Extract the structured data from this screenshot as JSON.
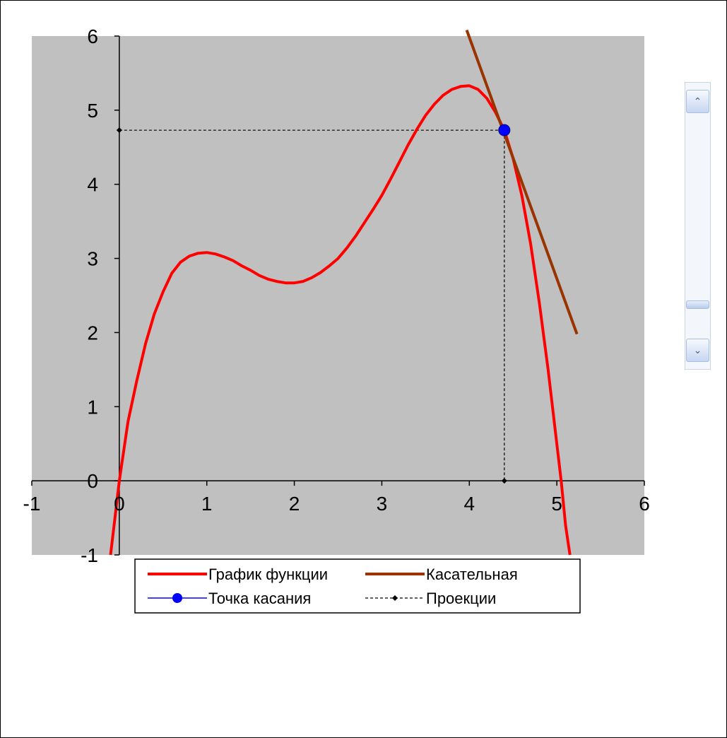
{
  "chart_data": {
    "type": "line",
    "title": "",
    "xlabel": "",
    "ylabel": "",
    "xlim": [
      -1,
      6
    ],
    "ylim": [
      -1,
      6
    ],
    "x_ticks": [
      "-1",
      "0",
      "1",
      "2",
      "3",
      "4",
      "5",
      "6"
    ],
    "y_ticks": [
      "6",
      "5",
      "4",
      "3",
      "2",
      "1",
      "0",
      "-1"
    ],
    "grid": false,
    "plot_background": "#c0c0c0",
    "legend_position": "bottom",
    "series": [
      {
        "name": "График функции",
        "style": "line",
        "color": "#ff0000",
        "points": [
          [
            -0.1,
            -1.0
          ],
          [
            0.0,
            0.0
          ],
          [
            0.1,
            0.8
          ],
          [
            0.2,
            1.35
          ],
          [
            0.3,
            1.85
          ],
          [
            0.4,
            2.25
          ],
          [
            0.5,
            2.55
          ],
          [
            0.6,
            2.8
          ],
          [
            0.7,
            2.95
          ],
          [
            0.8,
            3.03
          ],
          [
            0.9,
            3.07
          ],
          [
            1.0,
            3.08
          ],
          [
            1.1,
            3.06
          ],
          [
            1.2,
            3.02
          ],
          [
            1.3,
            2.97
          ],
          [
            1.4,
            2.9
          ],
          [
            1.5,
            2.84
          ],
          [
            1.6,
            2.77
          ],
          [
            1.7,
            2.72
          ],
          [
            1.8,
            2.69
          ],
          [
            1.9,
            2.67
          ],
          [
            2.0,
            2.67
          ],
          [
            2.1,
            2.69
          ],
          [
            2.2,
            2.74
          ],
          [
            2.3,
            2.81
          ],
          [
            2.4,
            2.9
          ],
          [
            2.5,
            3.0
          ],
          [
            2.6,
            3.14
          ],
          [
            2.7,
            3.3
          ],
          [
            2.8,
            3.48
          ],
          [
            2.9,
            3.66
          ],
          [
            3.0,
            3.85
          ],
          [
            3.1,
            4.07
          ],
          [
            3.2,
            4.3
          ],
          [
            3.3,
            4.53
          ],
          [
            3.4,
            4.74
          ],
          [
            3.5,
            4.93
          ],
          [
            3.6,
            5.08
          ],
          [
            3.7,
            5.2
          ],
          [
            3.8,
            5.28
          ],
          [
            3.9,
            5.32
          ],
          [
            4.0,
            5.33
          ],
          [
            4.1,
            5.28
          ],
          [
            4.2,
            5.16
          ],
          [
            4.3,
            4.97
          ],
          [
            4.4,
            4.73
          ],
          [
            4.5,
            4.35
          ],
          [
            4.6,
            3.85
          ],
          [
            4.7,
            3.2
          ],
          [
            4.8,
            2.4
          ],
          [
            4.9,
            1.5
          ],
          [
            5.0,
            0.5
          ],
          [
            5.05,
            0.0
          ],
          [
            5.1,
            -0.6
          ],
          [
            5.15,
            -1.0
          ]
        ]
      },
      {
        "name": "Касательная",
        "style": "line",
        "color": "#993300",
        "points": [
          [
            3.97,
            6.08
          ],
          [
            5.23,
            1.98
          ]
        ]
      },
      {
        "name": "Точка касания",
        "style": "marker",
        "color": "#0000ff",
        "points": [
          [
            4.4,
            4.73
          ]
        ]
      },
      {
        "name": "Проекции",
        "style": "dashed-marker",
        "color": "#000000",
        "points": [
          [
            0.0,
            4.73
          ],
          [
            4.4,
            4.73
          ],
          [
            4.4,
            0.0
          ]
        ]
      }
    ]
  },
  "scrollbar": {
    "up_icon": "chevron-up-icon",
    "down_icon": "chevron-down-icon",
    "up_glyph": "⌃",
    "down_glyph": "⌄",
    "value_fraction": 0.9
  }
}
